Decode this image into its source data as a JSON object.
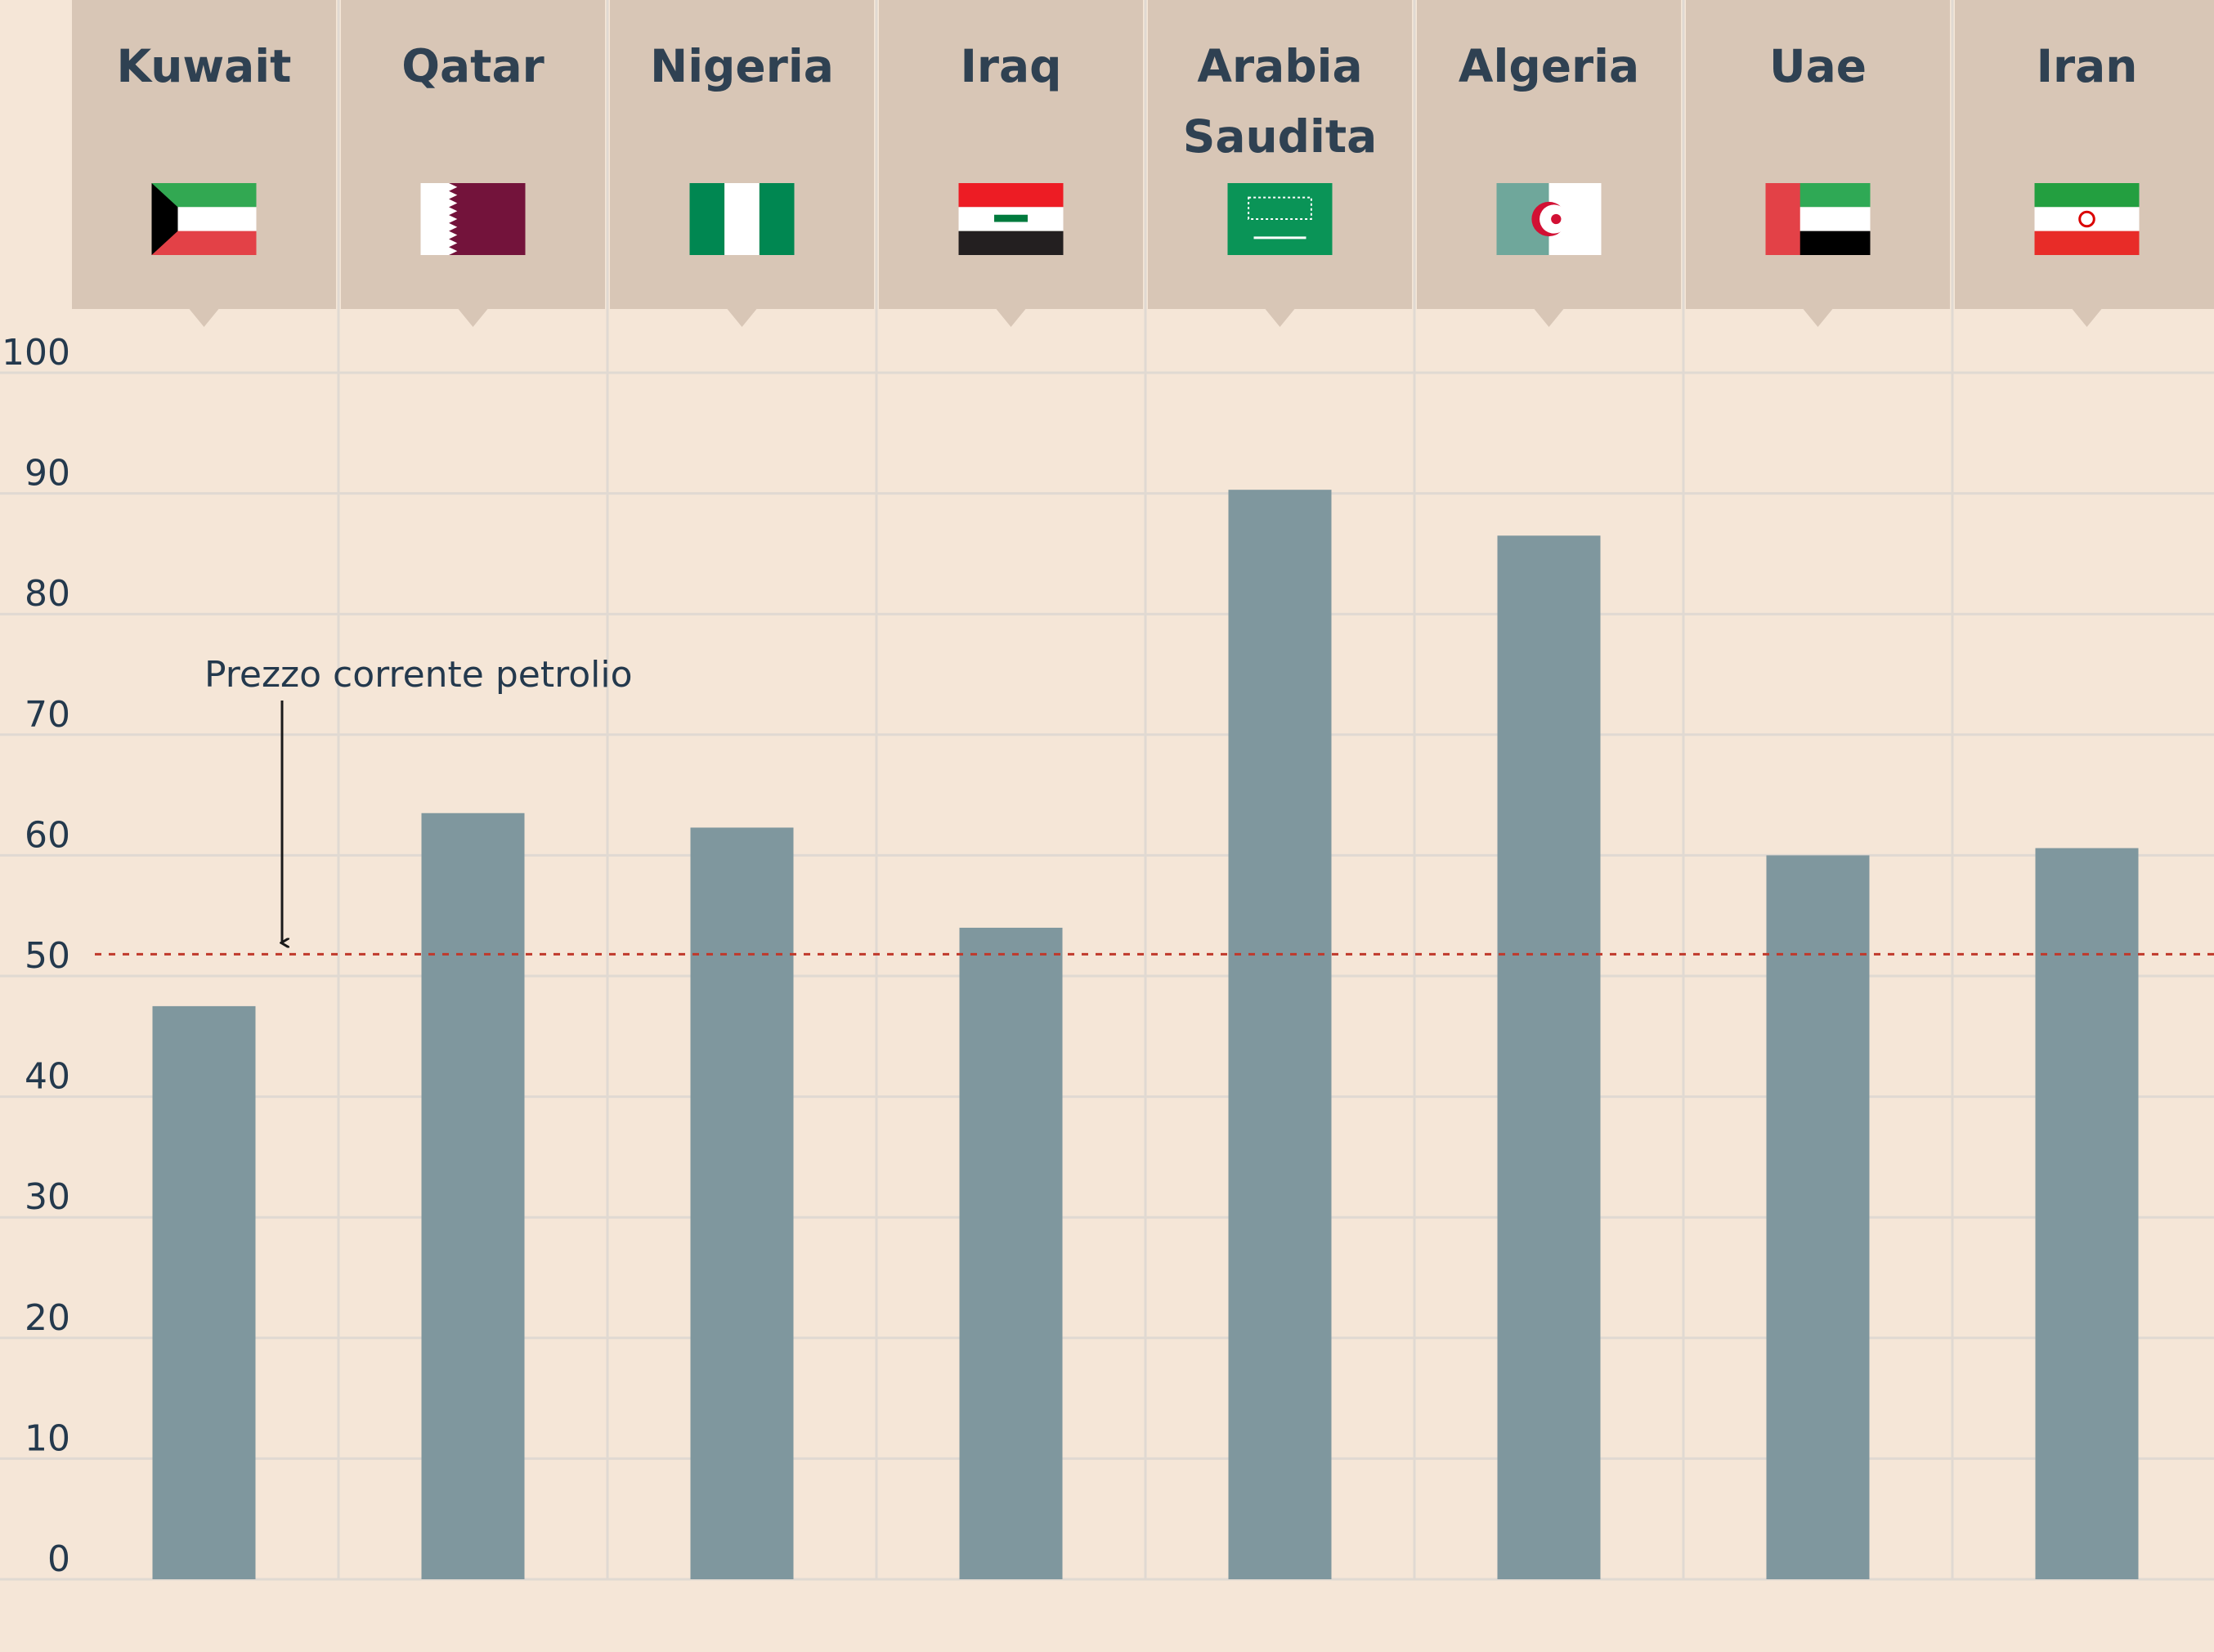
{
  "chart_data": {
    "type": "bar",
    "categories": [
      [
        "Kuwait"
      ],
      [
        "Qatar"
      ],
      [
        "Nigeria"
      ],
      [
        "Iraq"
      ],
      [
        "Arabia",
        "Saudita"
      ],
      [
        "Algeria"
      ],
      [
        "Uae"
      ],
      [
        "Iran"
      ]
    ],
    "flags": [
      "kuwait",
      "qatar",
      "nigeria",
      "iraq",
      "saudi-arabia",
      "algeria",
      "uae",
      "iran"
    ],
    "values": [
      47.5,
      63.5,
      62.3,
      54.0,
      90.3,
      86.5,
      60.0,
      60.6
    ],
    "ylim": [
      0,
      100
    ],
    "yticks": [
      "0",
      "10",
      "20",
      "30",
      "40",
      "50",
      "60",
      "70",
      "80",
      "90",
      "100"
    ],
    "grid": true,
    "reference_line": {
      "value": 51.8,
      "label": "Prezzo corrente petrolio",
      "color": "#c0392b"
    },
    "colors": {
      "bar": "#7f979e",
      "background": "#f5e6d7",
      "header": "#d8c6b6",
      "grid": "#e0d9d2",
      "text": "#24394d"
    }
  }
}
